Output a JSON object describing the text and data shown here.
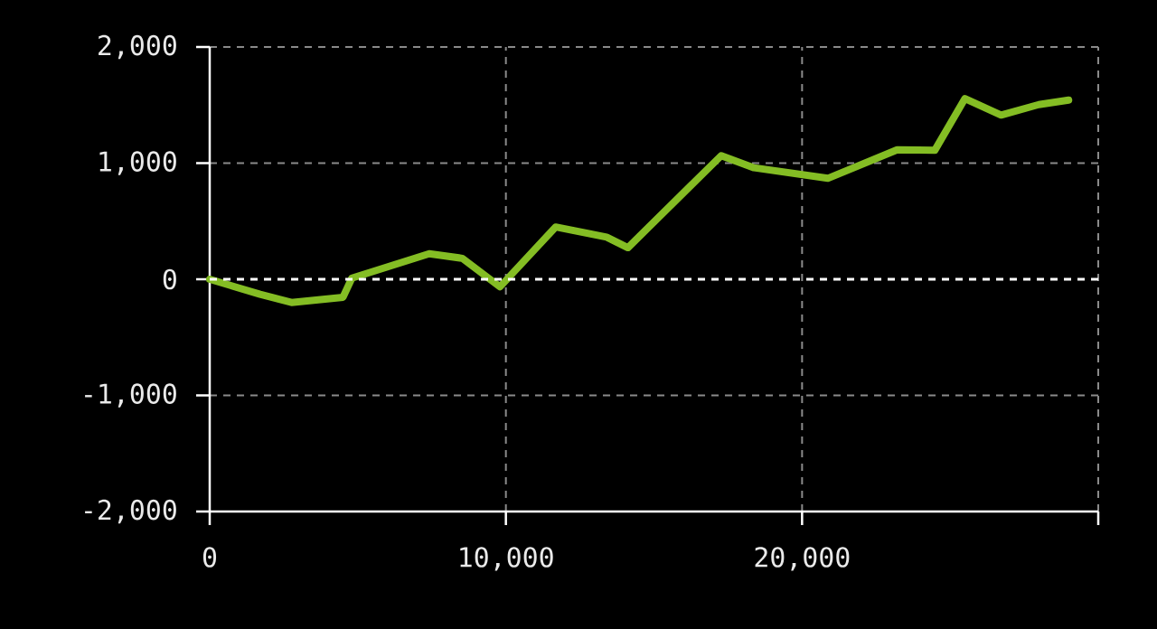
{
  "chart_data": {
    "type": "line",
    "x": [
      0,
      1700,
      2760,
      4500,
      4800,
      7410,
      8530,
      9800,
      11680,
      13400,
      14120,
      17270,
      18380,
      20870,
      23210,
      24480,
      25500,
      26720,
      27990,
      29000
    ],
    "values": [
      0,
      -130,
      -200,
      -155,
      10,
      220,
      180,
      -65,
      450,
      363,
      272,
      1064,
      960,
      869,
      1115,
      1110,
      1556,
      1414,
      1504,
      1543
    ],
    "color": "#84bd24",
    "xlim": [
      0,
      30000
    ],
    "ylim": [
      -2000,
      2000
    ],
    "xticks": [
      0,
      {
        "value": 10000,
        "label": "10,000"
      },
      {
        "value": 20000,
        "label": "20,000"
      },
      {
        "value": 30000,
        "label": null
      }
    ],
    "yticks": [
      {
        "value": -2000,
        "label": "-2,000"
      },
      {
        "value": -1000,
        "label": "-1,000"
      },
      0,
      {
        "value": 1000,
        "label": "1,000"
      },
      {
        "value": 2000,
        "label": "2,000"
      }
    ],
    "grid": true,
    "marker": "none",
    "line_style": "solid",
    "ref_lines": [
      {
        "axis": "y",
        "value": 0,
        "color": "#ffffff",
        "line_style": "dashed"
      }
    ]
  }
}
